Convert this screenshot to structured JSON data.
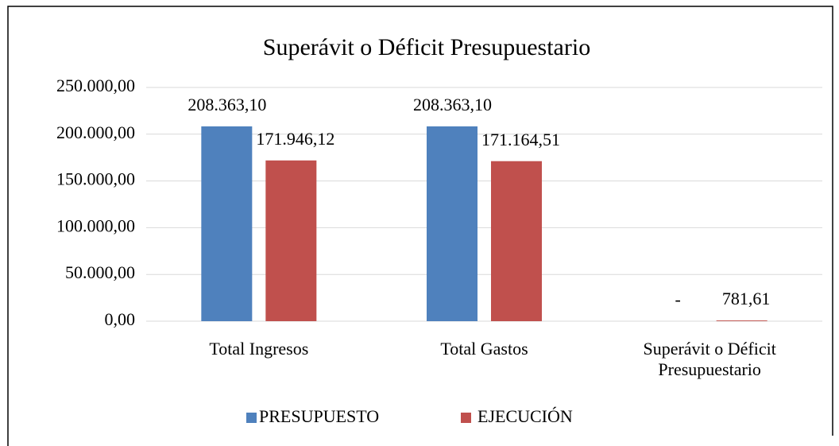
{
  "chart_data": {
    "type": "bar",
    "title": "Superávit o Déficit Presupuestario",
    "categories": [
      "Total Ingresos",
      "Total Gastos",
      "Superávit o Déficit Presupuestario"
    ],
    "series": [
      {
        "name": "PRESUPUESTO",
        "color": "#4f81bd",
        "values": [
          208363.1,
          208363.1,
          0
        ],
        "value_labels": [
          "208.363,10",
          "208.363,10",
          "-"
        ]
      },
      {
        "name": "EJECUCIÓN",
        "color": "#c0504d",
        "values": [
          171946.12,
          171164.51,
          781.61
        ],
        "value_labels": [
          "171.946,12",
          "171.164,51",
          "781,61"
        ]
      }
    ],
    "ylim": [
      0,
      250000
    ],
    "yticks": [
      {
        "value": 0,
        "label": "0,00"
      },
      {
        "value": 50000,
        "label": "50.000,00"
      },
      {
        "value": 100000,
        "label": "100.000,00"
      },
      {
        "value": 150000,
        "label": "150.000,00"
      },
      {
        "value": 200000,
        "label": "200.000,00"
      },
      {
        "value": 250000,
        "label": "250.000,00"
      }
    ],
    "grid": true,
    "legend": "bottom"
  }
}
